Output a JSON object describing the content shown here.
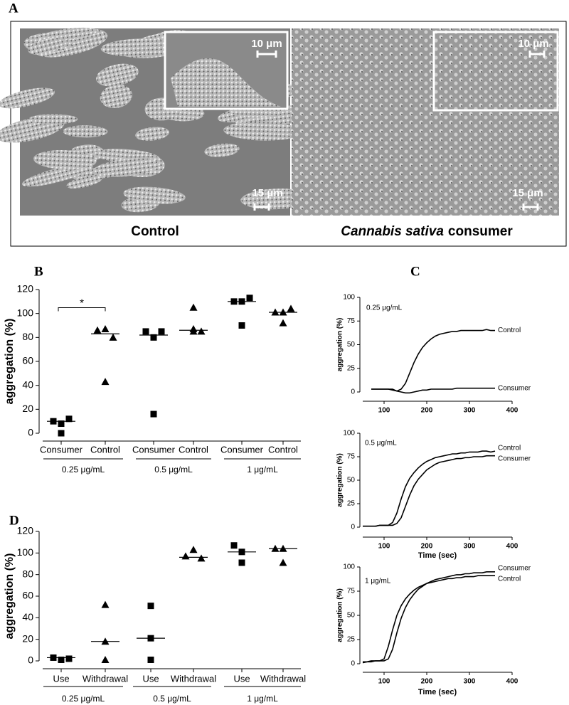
{
  "panel_a": {
    "label": "A",
    "captions": {
      "left": "Control",
      "right_italic": "Cannabis sativa",
      "right": "consumer"
    },
    "scale_bars": [
      "10 μm",
      "15 μm",
      "10 μm",
      "15 μm"
    ]
  },
  "chart_data": [
    {
      "panel": "B",
      "type": "dot",
      "ylabel": "aggregation (%)",
      "categories": [
        "Consumer",
        "Control",
        "Consumer",
        "Control",
        "Consumer",
        "Control"
      ],
      "groups": [
        "0.25 μg/mL",
        "0.5 μg/mL",
        "1 μg/mL"
      ],
      "values": [
        [
          10,
          8,
          12,
          0
        ],
        [
          86,
          87,
          80,
          43
        ],
        [
          85,
          80,
          85,
          16
        ],
        [
          105,
          87,
          85,
          85
        ],
        [
          110,
          110,
          113,
          90
        ],
        [
          101,
          101,
          104,
          92
        ]
      ],
      "means": [
        10,
        83,
        82,
        86,
        110,
        101
      ],
      "markers": [
        "square",
        "triangle",
        "square",
        "triangle",
        "square",
        "triangle"
      ],
      "color": "#000000",
      "ylim": [
        0,
        120
      ],
      "yticks": [
        0,
        20,
        40,
        60,
        80,
        100,
        120
      ],
      "significance": "*"
    },
    {
      "panel": "C",
      "type": "line",
      "ylabel": "aggregation (%)",
      "annotation": "0.25 μg/mL",
      "x": [
        70,
        80,
        90,
        100,
        110,
        120,
        130,
        140,
        150,
        160,
        170,
        180,
        190,
        200,
        210,
        220,
        230,
        240,
        250,
        260,
        270,
        280,
        290,
        300,
        310,
        320,
        330,
        340,
        350,
        360
      ],
      "series": [
        {
          "name": "Control",
          "color": "#000000",
          "values": [
            3,
            3,
            3,
            3,
            3,
            2,
            1,
            3,
            9,
            20,
            31,
            40,
            47,
            52,
            56,
            59,
            61,
            62,
            63,
            64,
            64,
            65,
            65,
            65,
            65,
            65,
            65,
            66,
            65,
            65
          ]
        },
        {
          "name": "Consumer",
          "color": "#000000",
          "values": [
            3,
            3,
            3,
            3,
            3,
            3,
            1,
            0,
            -1,
            -1,
            0,
            1,
            2,
            2,
            3,
            3,
            3,
            3,
            3,
            3,
            4,
            4,
            4,
            4,
            4,
            4,
            4,
            4,
            4,
            4
          ]
        }
      ],
      "xlim": [
        50,
        400
      ],
      "xticks": [
        100,
        200,
        300,
        400
      ],
      "ylim": [
        0,
        100
      ],
      "yticks": [
        0,
        25,
        50,
        75,
        100
      ]
    },
    {
      "type": "line",
      "ylabel": "aggregation (%)",
      "xlabel": "Time (sec)",
      "annotation": "0.5 μg/mL",
      "x": [
        50,
        60,
        70,
        80,
        90,
        100,
        110,
        120,
        130,
        140,
        150,
        160,
        170,
        180,
        190,
        200,
        210,
        220,
        230,
        240,
        250,
        260,
        270,
        280,
        290,
        300,
        310,
        320,
        330,
        340,
        350,
        360
      ],
      "series": [
        {
          "name": "Control",
          "color": "#000000",
          "values": [
            1,
            1,
            1,
            1,
            2,
            2,
            2,
            5,
            15,
            30,
            43,
            52,
            58,
            63,
            67,
            70,
            72,
            74,
            75,
            76,
            77,
            78,
            78,
            79,
            79,
            80,
            80,
            80,
            81,
            81,
            80,
            81
          ]
        },
        {
          "name": "Consumer",
          "color": "#000000",
          "values": [
            1,
            1,
            1,
            1,
            2,
            2,
            2,
            2,
            4,
            10,
            22,
            34,
            44,
            51,
            56,
            61,
            64,
            67,
            69,
            70,
            71,
            72,
            73,
            73,
            74,
            74,
            75,
            75,
            75,
            76,
            76,
            76
          ]
        }
      ],
      "xlim": [
        50,
        400
      ],
      "xticks": [
        100,
        200,
        300,
        400
      ],
      "ylim": [
        0,
        100
      ],
      "yticks": [
        0,
        25,
        50,
        75,
        100
      ]
    },
    {
      "type": "line",
      "ylabel": "aggregation (%)",
      "xlabel": "Time (sec)",
      "annotation": "1 μg/mL",
      "x": [
        50,
        60,
        70,
        80,
        90,
        100,
        110,
        120,
        130,
        140,
        150,
        160,
        170,
        180,
        190,
        200,
        210,
        220,
        230,
        240,
        250,
        260,
        270,
        280,
        290,
        300,
        310,
        320,
        330,
        340,
        350,
        360
      ],
      "series": [
        {
          "name": "Consumer",
          "color": "#000000",
          "values": [
            1,
            2,
            2,
            3,
            3,
            3,
            5,
            15,
            32,
            47,
            58,
            66,
            72,
            77,
            80,
            83,
            85,
            87,
            88,
            89,
            90,
            91,
            92,
            92,
            93,
            93,
            94,
            94,
            94,
            95,
            95,
            95
          ]
        },
        {
          "name": "Control",
          "color": "#000000",
          "values": [
            2,
            2,
            3,
            3,
            3,
            5,
            18,
            35,
            50,
            60,
            67,
            72,
            76,
            79,
            81,
            83,
            84,
            85,
            86,
            87,
            88,
            88,
            89,
            89,
            90,
            90,
            90,
            91,
            91,
            91,
            91,
            91
          ]
        }
      ],
      "xlim": [
        50,
        400
      ],
      "xticks": [
        100,
        200,
        300,
        400
      ],
      "ylim": [
        0,
        100
      ],
      "yticks": [
        0,
        25,
        50,
        75,
        100
      ]
    },
    {
      "panel": "D",
      "type": "dot",
      "ylabel": "aggregation (%)",
      "categories": [
        "Use",
        "Withdrawal",
        "Use",
        "Withdrawal",
        "Use",
        "Withdrawal"
      ],
      "groups": [
        "0.25 μg/mL",
        "0.5 μg/mL",
        "1 μg/mL"
      ],
      "values": [
        [
          3,
          1,
          2
        ],
        [
          52,
          18,
          1
        ],
        [
          51,
          21,
          1
        ],
        [
          97,
          103,
          95
        ],
        [
          107,
          101,
          91
        ],
        [
          104,
          104,
          91
        ]
      ],
      "means": [
        3,
        18,
        21,
        96,
        101,
        104
      ],
      "markers": [
        "square",
        "triangle",
        "square",
        "triangle",
        "square",
        "triangle"
      ],
      "color": "#000000",
      "ylim": [
        0,
        120
      ],
      "yticks": [
        0,
        20,
        40,
        60,
        80,
        100,
        120
      ]
    }
  ]
}
